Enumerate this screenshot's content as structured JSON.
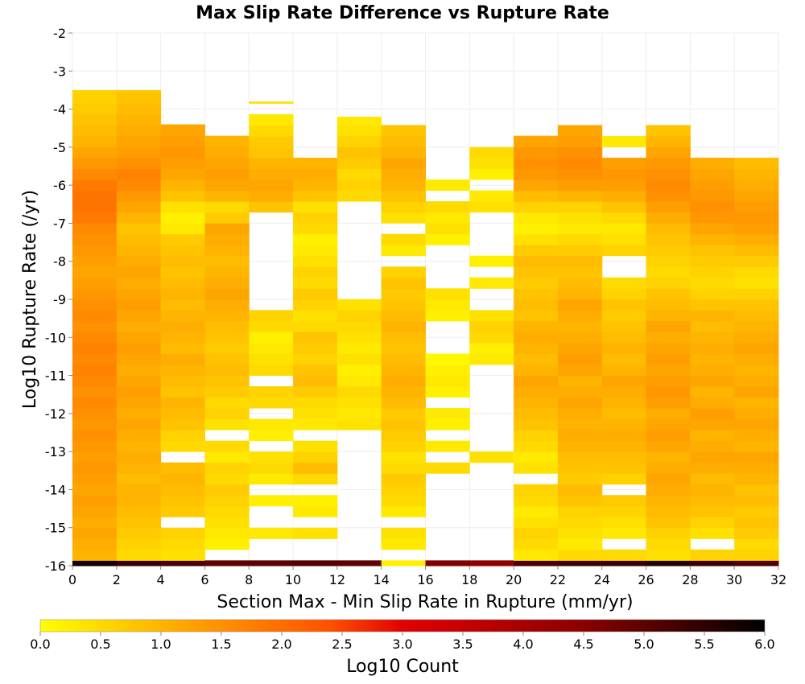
{
  "chart_data": {
    "type": "heatmap",
    "title": "Max Slip Rate Difference vs Rupture Rate",
    "xlabel": "Section Max - Min Slip Rate in Rupture (mm/yr)",
    "ylabel": "Log10 Rupture Rate (/yr)",
    "xlim": [
      0,
      32
    ],
    "ylim": [
      -16,
      -2
    ],
    "x_ticks": [
      "0",
      "2",
      "4",
      "6",
      "8",
      "10",
      "12",
      "14",
      "16",
      "18",
      "20",
      "22",
      "24",
      "26",
      "28",
      "30",
      "32"
    ],
    "y_ticks": [
      "-2",
      "-3",
      "-4",
      "-5",
      "-6",
      "-7",
      "-8",
      "-9",
      "-10",
      "-11",
      "-12",
      "-13",
      "-14",
      "-15",
      "-16"
    ],
    "colorbar": {
      "label": "Log10 Count",
      "range": [
        0,
        6
      ],
      "ticks": [
        "0.0",
        "0.5",
        "1.0",
        "1.5",
        "2.0",
        "2.5",
        "3.0",
        "3.5",
        "4.0",
        "4.5",
        "5.0",
        "5.5",
        "6.0"
      ],
      "colors": [
        "#ffff00",
        "#ffa500",
        "#ff5000",
        "#e30000",
        "#8b0000",
        "#000000"
      ]
    },
    "grid": true,
    "x_bin_width": 2,
    "y_bin_height": 0.286,
    "y_bin_start": -16,
    "columns": [
      {
        "x0": 0,
        "ymax": -3.5,
        "values": [
          5.8,
          1.0,
          1.1,
          1.2,
          1.1,
          1.2,
          1.3,
          1.2,
          1.3,
          1.4,
          1.3,
          1.4,
          1.5,
          1.4,
          1.5,
          1.6,
          1.5,
          1.6,
          1.7,
          1.6,
          1.7,
          1.6,
          1.5,
          1.6,
          1.5,
          1.4,
          1.3,
          1.2,
          1.3,
          1.4,
          1.5,
          1.6,
          1.8,
          1.9,
          1.9,
          1.8,
          1.6,
          1.4,
          1.2,
          1.0,
          0.9,
          0.8,
          0.7,
          0.6,
          0.6,
          0.5,
          0.4,
          0.3,
          0.2,
          0.1,
          0.1,
          0.1
        ]
      },
      {
        "x0": 2,
        "ymax": -3.5,
        "values": [
          5.4,
          0.5,
          0.6,
          0.7,
          0.8,
          0.9,
          1.0,
          1.0,
          0.9,
          1.0,
          1.1,
          1.0,
          1.1,
          1.2,
          1.1,
          1.2,
          1.3,
          1.2,
          1.1,
          1.2,
          1.3,
          1.2,
          1.1,
          1.2,
          1.3,
          1.2,
          1.1,
          1.2,
          1.1,
          1.0,
          0.9,
          0.8,
          1.0,
          1.2,
          1.4,
          1.6,
          1.7,
          1.5,
          1.3,
          1.2,
          1.1,
          1.0,
          0.9,
          0.8,
          0.7,
          0.6,
          0.5,
          0.4,
          0.3,
          0.3,
          0.2,
          0.0
        ]
      },
      {
        "x0": 4,
        "ymax": -4.4,
        "values": [
          5.2,
          0.4,
          0.5,
          0.6,
          null,
          0.7,
          0.8,
          0.9,
          1.0,
          0.9,
          null,
          0.5,
          0.6,
          0.8,
          0.9,
          1.0,
          0.8,
          0.9,
          1.0,
          1.1,
          0.9,
          1.0,
          1.1,
          1.0,
          0.9,
          1.0,
          0.9,
          0.8,
          0.9,
          0.8,
          0.7,
          0.3,
          0.2,
          0.4,
          0.8,
          1.0,
          1.2,
          1.3,
          1.4,
          1.3,
          1.2,
          1.1,
          1.0,
          0.8,
          0.9,
          1.0
        ]
      },
      {
        "x0": 6,
        "ymax": -4.7,
        "values": [
          5.0,
          null,
          0.2,
          0.3,
          0.4,
          0.5,
          0.6,
          0.7,
          0.5,
          0.6,
          0.3,
          0.5,
          null,
          0.4,
          0.6,
          0.5,
          0.7,
          0.8,
          0.9,
          0.8,
          0.7,
          0.8,
          0.9,
          1.0,
          1.1,
          1.2,
          1.1,
          1.0,
          0.9,
          1.0,
          1.1,
          1.2,
          0.7,
          0.5,
          1.0,
          1.2,
          1.3,
          1.2,
          1.1,
          1.0,
          0.9
        ]
      },
      {
        "x0": 8,
        "ymax": -3.8,
        "values": [
          5.0,
          null,
          null,
          0.3,
          null,
          null,
          0.2,
          null,
          0.3,
          0.5,
          0.4,
          null,
          0.2,
          0.3,
          null,
          0.5,
          0.6,
          null,
          0.5,
          0.4,
          0.3,
          0.2,
          0.5,
          0.6,
          null,
          null,
          null,
          null,
          null,
          null,
          null,
          null,
          null,
          0.8,
          1.1,
          1.2,
          1.1,
          1.0,
          0.8,
          0.7,
          0.5,
          0.3,
          null,
          0.4,
          0.2
        ]
      },
      {
        "x0": 10,
        "ymax": -5.0,
        "values": [
          5.1,
          null,
          null,
          0.4,
          null,
          0.3,
          0.2,
          null,
          0.5,
          0.9,
          0.6,
          0.4,
          null,
          0.3,
          0.4,
          0.5,
          0.7,
          0.9,
          0.8,
          0.6,
          0.7,
          0.8,
          0.5,
          0.4,
          0.6,
          0.7,
          0.5,
          0.6,
          0.4,
          0.3,
          0.2,
          0.5,
          0.6,
          0.4,
          0.8,
          1.0,
          1.1,
          1.0
        ]
      },
      {
        "x0": 12,
        "ymax": -4.2,
        "values": [
          5.0,
          null,
          null,
          null,
          null,
          null,
          null,
          null,
          null,
          null,
          null,
          null,
          null,
          0.4,
          0.3,
          0.4,
          0.5,
          0.3,
          0.2,
          0.4,
          0.3,
          0.4,
          0.5,
          0.6,
          0.4,
          null,
          null,
          null,
          null,
          null,
          null,
          null,
          null,
          null,
          0.5,
          0.6,
          0.5,
          0.7,
          0.8,
          0.6,
          0.4,
          0.3
        ]
      },
      {
        "x0": 14,
        "ymax": -4.4,
        "values": [
          0.2,
          null,
          0.3,
          0.4,
          null,
          0.3,
          0.5,
          0.6,
          0.7,
          0.5,
          0.4,
          0.6,
          0.7,
          0.8,
          0.7,
          0.9,
          1.0,
          1.1,
          1.0,
          0.9,
          0.8,
          0.9,
          1.0,
          0.9,
          0.8,
          0.7,
          0.8,
          0.6,
          null,
          0.3,
          0.5,
          null,
          0.4,
          0.6,
          0.8,
          1.0,
          1.1,
          1.2,
          1.0,
          0.9,
          0.8
        ]
      },
      {
        "x0": 16,
        "ymax": -5.6,
        "values": [
          4.6,
          null,
          null,
          null,
          null,
          null,
          null,
          null,
          null,
          0.5,
          null,
          0.3,
          null,
          0.2,
          0.3,
          null,
          0.2,
          0.3,
          0.2,
          0.1,
          null,
          null,
          null,
          0.2,
          0.3,
          0.4,
          null,
          null,
          null,
          null,
          0.2,
          0.4,
          0.3,
          0.5,
          null,
          0.3
        ]
      },
      {
        "x0": 18,
        "ymax": -5.0,
        "values": [
          4.4,
          null,
          null,
          null,
          null,
          null,
          null,
          null,
          null,
          null,
          0.4,
          null,
          null,
          null,
          null,
          null,
          null,
          null,
          null,
          0.3,
          0.2,
          0.5,
          0.6,
          0.4,
          null,
          null,
          0.3,
          null,
          0.2,
          null,
          null,
          null,
          null,
          0.4,
          0.3,
          null,
          0.2,
          0.4,
          0.5
        ]
      },
      {
        "x0": 20,
        "ymax": -4.7,
        "values": [
          5.2,
          0.3,
          0.5,
          0.6,
          0.4,
          0.3,
          0.5,
          0.6,
          null,
          0.4,
          0.3,
          0.5,
          0.6,
          0.8,
          0.9,
          1.0,
          1.1,
          1.2,
          1.0,
          0.9,
          1.0,
          1.1,
          1.0,
          0.8,
          0.9,
          0.8,
          0.7,
          0.8,
          0.9,
          0.7,
          0.4,
          0.2,
          0.3,
          0.6,
          0.9,
          1.2,
          1.4,
          1.5,
          1.4,
          1.2,
          1.0
        ]
      },
      {
        "x0": 22,
        "ymax": -4.4,
        "values": [
          5.3,
          0.5,
          0.3,
          0.4,
          0.5,
          0.6,
          0.8,
          0.9,
          0.7,
          0.8,
          0.9,
          1.0,
          1.1,
          1.0,
          1.1,
          1.2,
          1.1,
          1.0,
          1.2,
          1.3,
          1.2,
          1.1,
          1.0,
          1.1,
          1.2,
          1.0,
          0.9,
          0.8,
          0.9,
          0.7,
          0.5,
          0.3,
          0.4,
          0.6,
          1.0,
          1.3,
          1.5,
          1.6,
          1.5,
          1.3,
          1.2
        ]
      },
      {
        "x0": 24,
        "ymax": -4.4,
        "values": [
          5.4,
          0.5,
          null,
          0.3,
          0.4,
          0.6,
          0.7,
          null,
          0.6,
          0.8,
          0.9,
          1.0,
          1.1,
          1.0,
          0.9,
          1.0,
          1.1,
          1.2,
          1.0,
          0.9,
          1.0,
          0.9,
          0.8,
          0.7,
          0.8,
          0.6,
          0.5,
          null,
          null,
          0.6,
          0.4,
          0.3,
          0.5,
          0.8,
          1.1,
          1.3,
          1.4,
          1.3,
          null,
          0.3
        ]
      },
      {
        "x0": 26,
        "ymax": -4.4,
        "values": [
          5.6,
          0.4,
          0.5,
          0.6,
          0.8,
          0.9,
          1.0,
          1.1,
          1.2,
          1.1,
          1.0,
          1.2,
          1.3,
          1.2,
          1.1,
          1.3,
          1.4,
          1.3,
          1.2,
          1.3,
          1.2,
          1.1,
          1.2,
          1.0,
          0.9,
          0.8,
          0.6,
          0.5,
          0.6,
          0.7,
          0.8,
          0.9,
          1.1,
          1.3,
          1.5,
          1.6,
          1.5,
          1.4,
          1.2,
          1.0,
          0.8
        ]
      },
      {
        "x0": 28,
        "ymax": -5.0,
        "values": [
          5.3,
          0.6,
          null,
          0.4,
          0.6,
          0.8,
          0.9,
          1.0,
          0.9,
          1.1,
          1.2,
          1.1,
          1.0,
          1.2,
          1.3,
          1.1,
          1.0,
          1.2,
          1.1,
          1.0,
          1.1,
          1.0,
          0.9,
          1.0,
          0.8,
          0.6,
          0.5,
          0.6,
          0.7,
          0.8,
          1.0,
          1.2,
          1.4,
          1.5,
          1.4,
          1.3,
          1.2,
          1.1
        ]
      },
      {
        "x0": 30,
        "ymax": -5.0,
        "values": [
          5.1,
          0.6,
          0.5,
          0.7,
          0.8,
          0.7,
          0.9,
          0.8,
          1.0,
          1.1,
          1.2,
          1.0,
          1.1,
          1.2,
          1.1,
          1.0,
          1.2,
          1.1,
          1.0,
          1.1,
          1.2,
          1.1,
          1.0,
          0.9,
          0.8,
          0.6,
          0.4,
          0.5,
          0.7,
          0.9,
          1.1,
          1.3,
          1.4,
          1.3,
          1.2,
          1.1,
          1.0,
          0.9
        ]
      }
    ]
  }
}
